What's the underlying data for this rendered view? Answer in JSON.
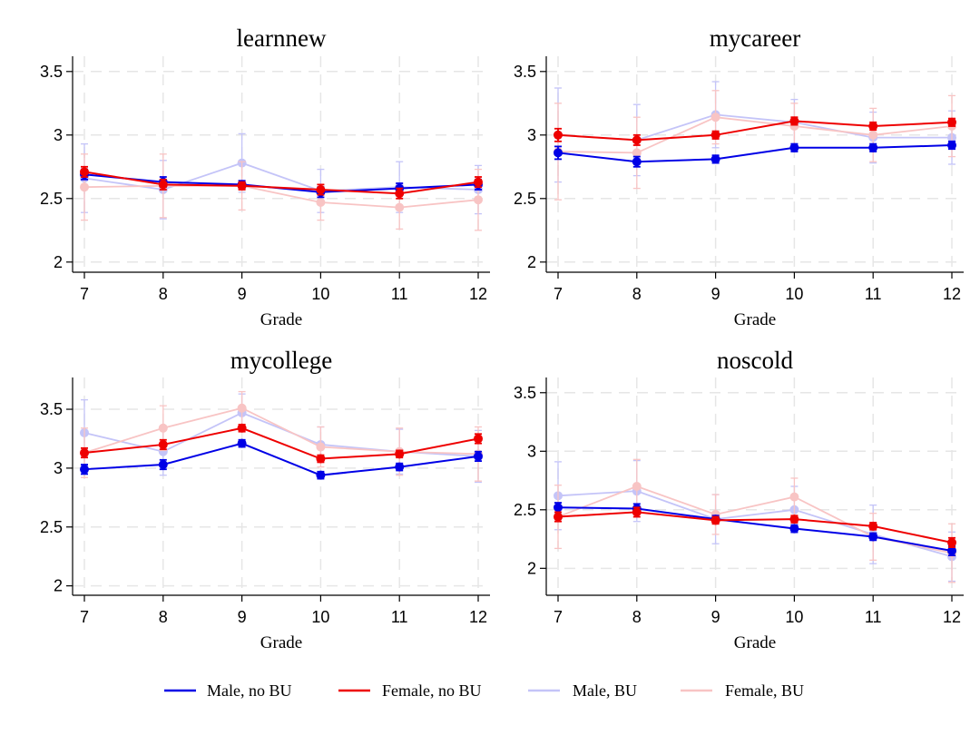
{
  "colors": {
    "male_nobu": "#0000e6",
    "female_nobu": "#ee0000",
    "male_bu": "#c4c4f8",
    "female_bu": "#f8c4c4"
  },
  "legend": [
    {
      "label": "Male, no BU",
      "color": "#0000e6"
    },
    {
      "label": "Female, no BU",
      "color": "#ee0000"
    },
    {
      "label": "Male, BU",
      "color": "#c4c4f8"
    },
    {
      "label": "Female, BU",
      "color": "#f8c4c4"
    }
  ],
  "chart_data": [
    {
      "type": "line",
      "title": "learnnew",
      "xlabel": "Grade",
      "ylabel": "",
      "x": [
        7,
        8,
        9,
        10,
        11,
        12
      ],
      "ylim": [
        1.92,
        3.62
      ],
      "yticks": [
        2,
        2.5,
        3,
        3.5
      ],
      "ytick_labels": [
        "2",
        "2.5",
        "3",
        "3.5"
      ],
      "series": [
        {
          "name": "Male, BU",
          "values": [
            2.66,
            2.57,
            2.78,
            2.56,
            2.59,
            2.57
          ],
          "err": [
            0.27,
            0.23,
            0.23,
            0.17,
            0.2,
            0.19
          ]
        },
        {
          "name": "Female, BU",
          "values": [
            2.59,
            2.6,
            2.6,
            2.47,
            2.43,
            2.49
          ],
          "err": [
            0.26,
            0.25,
            0.19,
            0.14,
            0.17,
            0.24
          ]
        },
        {
          "name": "Male, no BU",
          "values": [
            2.69,
            2.63,
            2.61,
            2.55,
            2.58,
            2.61
          ],
          "err": [
            0.04,
            0.04,
            0.03,
            0.04,
            0.04,
            0.04
          ]
        },
        {
          "name": "Female, no BU",
          "values": [
            2.71,
            2.61,
            2.6,
            2.57,
            2.54,
            2.63
          ],
          "err": [
            0.04,
            0.04,
            0.03,
            0.04,
            0.04,
            0.04
          ]
        }
      ]
    },
    {
      "type": "line",
      "title": "mycareer",
      "xlabel": "Grade",
      "ylabel": "",
      "x": [
        7,
        8,
        9,
        10,
        11,
        12
      ],
      "ylim": [
        1.92,
        3.62
      ],
      "yticks": [
        2,
        2.5,
        3,
        3.5
      ],
      "ytick_labels": [
        "2",
        "2.5",
        "3",
        "3.5"
      ],
      "series": [
        {
          "name": "Male, BU",
          "values": [
            3.0,
            2.96,
            3.16,
            3.1,
            2.98,
            2.98
          ],
          "err": [
            0.37,
            0.28,
            0.26,
            0.18,
            0.2,
            0.21
          ]
        },
        {
          "name": "Female, BU",
          "values": [
            2.87,
            2.86,
            3.14,
            3.07,
            3.0,
            3.07
          ],
          "err": [
            0.38,
            0.28,
            0.21,
            0.18,
            0.21,
            0.24
          ]
        },
        {
          "name": "Male, no BU",
          "values": [
            2.86,
            2.79,
            2.81,
            2.9,
            2.9,
            2.92
          ],
          "err": [
            0.05,
            0.04,
            0.03,
            0.03,
            0.03,
            0.03
          ]
        },
        {
          "name": "Female, no BU",
          "values": [
            3.0,
            2.96,
            3.0,
            3.11,
            3.07,
            3.1
          ],
          "err": [
            0.05,
            0.04,
            0.03,
            0.03,
            0.03,
            0.03
          ]
        }
      ]
    },
    {
      "type": "line",
      "title": "mycollege",
      "xlabel": "Grade",
      "ylabel": "",
      "x": [
        7,
        8,
        9,
        10,
        11,
        12
      ],
      "ylim": [
        1.92,
        3.77
      ],
      "yticks": [
        2,
        2.5,
        3,
        3.5
      ],
      "ytick_labels": [
        "2",
        "2.5",
        "3",
        "3.5"
      ],
      "series": [
        {
          "name": "Male, BU",
          "values": [
            3.3,
            3.14,
            3.47,
            3.2,
            3.14,
            3.1
          ],
          "err": [
            0.28,
            0.2,
            0.16,
            0.15,
            0.19,
            0.22
          ]
        },
        {
          "name": "Female, BU",
          "values": [
            3.13,
            3.34,
            3.51,
            3.18,
            3.14,
            3.12
          ],
          "err": [
            0.21,
            0.19,
            0.14,
            0.17,
            0.2,
            0.23
          ]
        },
        {
          "name": "Male, no BU",
          "values": [
            2.99,
            3.03,
            3.21,
            2.94,
            3.01,
            3.1
          ],
          "err": [
            0.04,
            0.04,
            0.03,
            0.03,
            0.03,
            0.04
          ]
        },
        {
          "name": "Female, no BU",
          "values": [
            3.13,
            3.2,
            3.34,
            3.08,
            3.12,
            3.25
          ],
          "err": [
            0.04,
            0.04,
            0.03,
            0.03,
            0.03,
            0.04
          ]
        }
      ]
    },
    {
      "type": "line",
      "title": "noscold",
      "xlabel": "Grade",
      "ylabel": "",
      "x": [
        7,
        8,
        9,
        10,
        11,
        12
      ],
      "ylim": [
        1.77,
        3.63
      ],
      "yticks": [
        2,
        2.5,
        3,
        3.5
      ],
      "ytick_labels": [
        "2",
        "2.5",
        "3",
        "3.5"
      ],
      "series": [
        {
          "name": "Male, BU",
          "values": [
            2.62,
            2.66,
            2.42,
            2.5,
            2.29,
            2.1
          ],
          "err": [
            0.29,
            0.26,
            0.21,
            0.2,
            0.25,
            0.21
          ]
        },
        {
          "name": "Female, BU",
          "values": [
            2.44,
            2.7,
            2.46,
            2.61,
            2.27,
            2.13
          ],
          "err": [
            0.27,
            0.23,
            0.17,
            0.16,
            0.2,
            0.25
          ]
        },
        {
          "name": "Male, no BU",
          "values": [
            2.52,
            2.51,
            2.42,
            2.34,
            2.27,
            2.15
          ],
          "err": [
            0.04,
            0.04,
            0.03,
            0.03,
            0.03,
            0.04
          ]
        },
        {
          "name": "Female, no BU",
          "values": [
            2.44,
            2.48,
            2.41,
            2.42,
            2.36,
            2.22
          ],
          "err": [
            0.04,
            0.04,
            0.03,
            0.03,
            0.03,
            0.04
          ]
        }
      ]
    }
  ]
}
